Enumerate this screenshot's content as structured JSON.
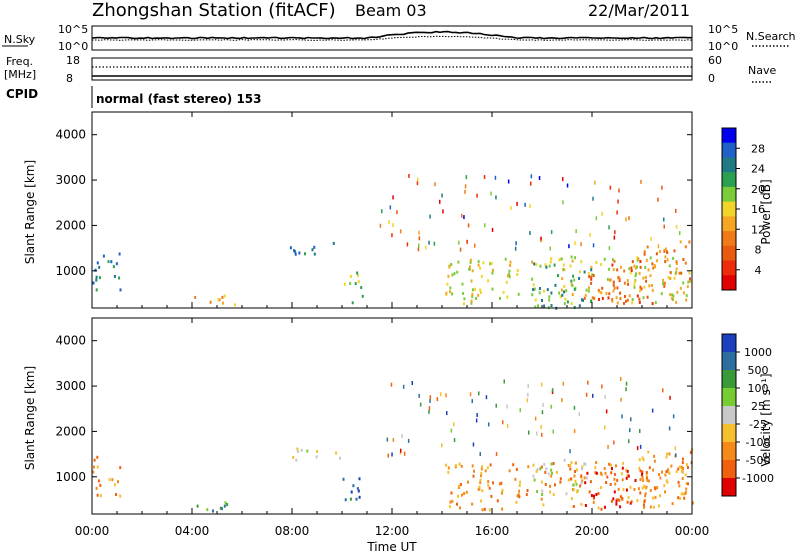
{
  "header": {
    "station": "Zhongshan Station (fitACF)",
    "beam": "Beam 03",
    "date": "22/Mar/2011"
  },
  "top_panels": {
    "nsky_label": "N.Sky",
    "nsky_ticks": [
      "10^5",
      "10^0"
    ],
    "nsearch_label": "N.Search",
    "nsearch_ticks": [
      "10^5",
      "10^0"
    ],
    "freq_label_1": "Freq.",
    "freq_label_2": "[MHz]",
    "freq_ticks": [
      "18",
      "8"
    ],
    "nave_label": "Nave",
    "nave_ticks": [
      "60",
      "0"
    ],
    "cpid_label": "CPID",
    "cpid_text": "normal (fast stereo) 153"
  },
  "chart_data": [
    {
      "type": "heatmap",
      "name": "power",
      "ylabel": "Slant Range [km]",
      "ylim": [
        180,
        4500
      ],
      "yticks": [
        "4000",
        "3000",
        "2000",
        "1000"
      ],
      "xlabel": "Time UT",
      "xlim": [
        "00:00",
        "24:00"
      ],
      "xticks": [
        "00:00",
        "04:00",
        "08:00",
        "12:00",
        "16:00",
        "20:00",
        "00:00"
      ],
      "colorbar": {
        "label": "Power [dB]",
        "ticks": [
          "28",
          "24",
          "20",
          "16",
          "12",
          "8",
          "4"
        ],
        "colors": [
          "#0000ee",
          "#2060c8",
          "#1f7a86",
          "#2aa050",
          "#7ccc3a",
          "#f2d52a",
          "#f5a623",
          "#f07a18",
          "#e85a10",
          "#ee2b0a",
          "#e00000"
        ]
      },
      "regions": [
        {
          "t": [
            0.0,
            1.1
          ],
          "r": [
            600,
            1500
          ],
          "level": 2
        },
        {
          "t": [
            3.3,
            5.8
          ],
          "r": [
            280,
            480
          ],
          "level": 6
        },
        {
          "t": [
            7.7,
            10.0
          ],
          "r": [
            1380,
            1650
          ],
          "level": 2
        },
        {
          "t": [
            10.0,
            10.8
          ],
          "r": [
            280,
            1000
          ],
          "level": 4
        },
        {
          "t": [
            14.1,
            24.0
          ],
          "r": [
            300,
            1350
          ],
          "level": 5
        },
        {
          "t": [
            17.6,
            20.0
          ],
          "r": [
            200,
            1200
          ],
          "level": 3
        },
        {
          "t": [
            19.6,
            22.4
          ],
          "r": [
            280,
            1250
          ],
          "level": 8
        },
        {
          "t": [
            21.8,
            24.0
          ],
          "r": [
            600,
            1700
          ],
          "level": 7
        }
      ]
    },
    {
      "type": "heatmap",
      "name": "velocity",
      "ylabel": "Slant Range [km]",
      "ylim": [
        180,
        4500
      ],
      "yticks": [
        "4000",
        "3000",
        "2000",
        "1000"
      ],
      "xlabel": "Time UT",
      "xlim": [
        "00:00",
        "24:00"
      ],
      "xticks": [
        "00:00",
        "04:00",
        "08:00",
        "12:00",
        "16:00",
        "20:00",
        "00:00"
      ],
      "colorbar": {
        "label": "Velocity [m s⁻¹]",
        "ticks": [
          "1000",
          "500",
          "100",
          "25",
          "-25",
          "-100",
          "-500",
          "-1000"
        ],
        "colors": [
          "#1a3fbf",
          "#2c6ea0",
          "#3a9a3a",
          "#77cc33",
          "#c8c8c8",
          "#f5c030",
          "#f58a1a",
          "#f06010",
          "#e00000"
        ]
      },
      "regions": [
        {
          "t": [
            0.0,
            1.1
          ],
          "r": [
            600,
            1500
          ],
          "level": 6
        },
        {
          "t": [
            3.3,
            5.8
          ],
          "r": [
            280,
            480
          ],
          "level": 2
        },
        {
          "t": [
            7.7,
            10.0
          ],
          "r": [
            1380,
            1650
          ],
          "level": 4
        },
        {
          "t": [
            10.0,
            10.8
          ],
          "r": [
            280,
            1000
          ],
          "level": 1
        },
        {
          "t": [
            14.1,
            24.0
          ],
          "r": [
            300,
            1350
          ],
          "level": 6
        },
        {
          "t": [
            17.6,
            20.0
          ],
          "r": [
            600,
            1400
          ],
          "level": 4
        },
        {
          "t": [
            19.6,
            22.4
          ],
          "r": [
            280,
            1250
          ],
          "level": 7
        },
        {
          "t": [
            21.8,
            24.0
          ],
          "r": [
            600,
            1700
          ],
          "level": 6
        }
      ]
    }
  ]
}
